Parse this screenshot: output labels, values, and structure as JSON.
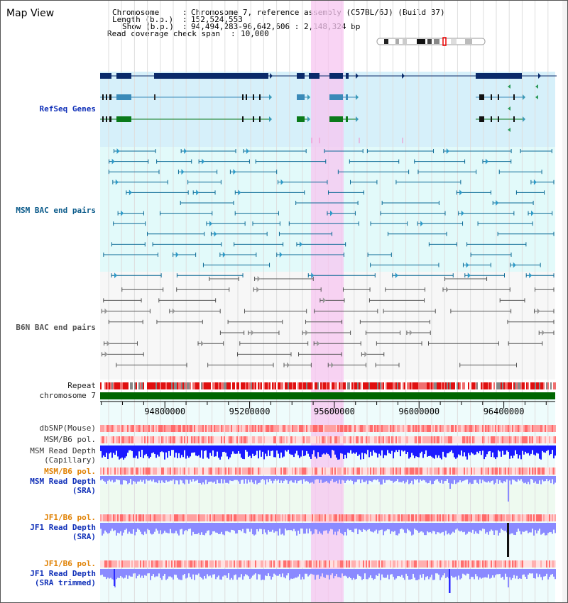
{
  "page": {
    "title": "Map View"
  },
  "info": {
    "chromosome_key": "Chromosome",
    "chromosome_val": "Chromosome 7, reference assembly (C57BL/6J) (Build 37)",
    "length_key": "Length (b.p.)",
    "length_val": "152,524,553",
    "show_key": "Show (b.p.)",
    "show_val": "94,494,283-96,642,606 : 2,148,324 bp",
    "coverage_key": "Read coverage check span",
    "coverage_val": "10,000"
  },
  "tracks": {
    "refseq": "RefSeq Genes",
    "msm_bac": "MSM BAC end pairs",
    "b6n_bac": "B6N BAC end pairs",
    "repeat": "Repeat",
    "chromosome": "chromosome 7",
    "dbsnp": "dbSNP(Mouse)",
    "msm_b6_pol_1": "MSM/B6 pol.",
    "msm_depth_cap_1": "MSM Read Depth",
    "msm_depth_cap_2": "(Capillary)",
    "msm_b6_pol_2": "MSM/B6 pol.",
    "msm_depth_sra_1": "MSM Read Depth",
    "msm_depth_sra_2": "(SRA)",
    "jf1_pol_1": "JF1/B6 pol.",
    "jf1_depth_1": "JF1 Read Depth",
    "jf1_depth_2": "(SRA)",
    "jf1_pol_2": "JF1/B6 pol.",
    "jf1_trim_1": "JF1 Read Depth",
    "jf1_trim_2": "(SRA trimmed)"
  },
  "axis": {
    "ticks": [
      "94800000",
      "95200000",
      "95600000",
      "96000000",
      "96400000"
    ],
    "tick_values": [
      94800000,
      95200000,
      95600000,
      96000000,
      96400000
    ],
    "range": [
      94494283,
      96642606
    ]
  },
  "colors": {
    "refseq_bg": "#d6f0fa",
    "msm_bg": "#e2fafa",
    "b6n_bg": "#f7f7f7",
    "highlight": "#f7c6f0",
    "chrom": "#006600",
    "depth_blue": "#1a1aff",
    "depth_light": "#8a8aff"
  }
}
